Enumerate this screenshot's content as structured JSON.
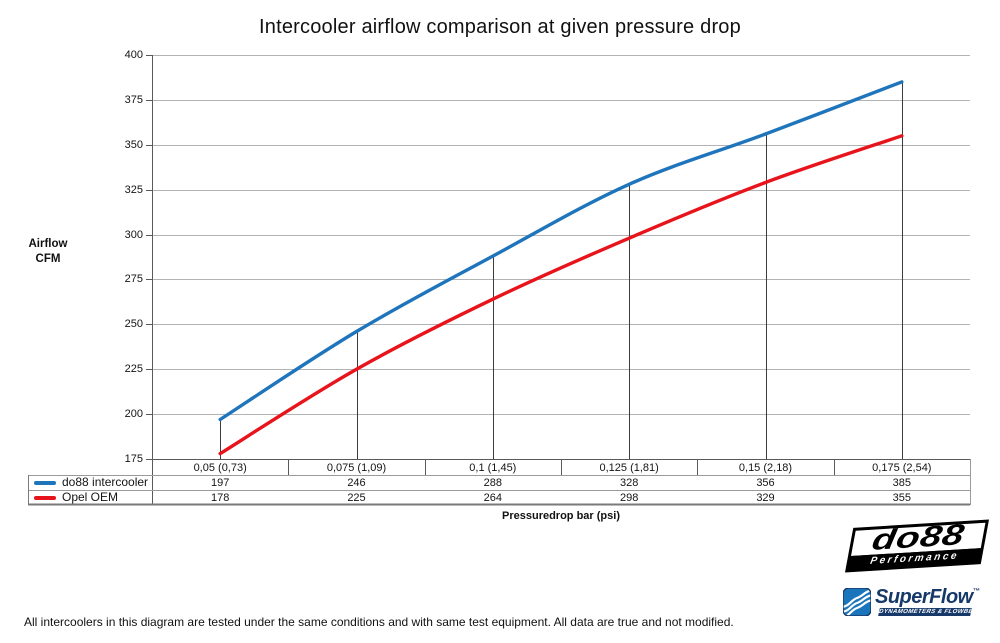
{
  "title": "Intercooler airflow comparison at given pressure drop",
  "chart_data": {
    "type": "line",
    "title": "Intercooler airflow comparison at given pressure drop",
    "categories": [
      "0,05 (0,73)",
      "0,075 (1,09)",
      "0,1 (1,45)",
      "0,125 (1,81)",
      "0,15 (2,18)",
      "0,175 (2,54)"
    ],
    "series": [
      {
        "name": "do88 intercooler",
        "color": "#1f75bc",
        "values": [
          197,
          246,
          288,
          328,
          356,
          385
        ]
      },
      {
        "name": "Opel OEM",
        "color": "#e8141c",
        "values": [
          178,
          225,
          264,
          298,
          329,
          355
        ]
      }
    ],
    "xlabel": "Pressuredrop bar (psi)",
    "ylabel": "Airflow CFM",
    "ylim": [
      175,
      400
    ],
    "ytick_step": 25,
    "grid": true,
    "legend_position": "table-left",
    "smooth_lines": true,
    "drop_lines": true
  },
  "y_axis_label": {
    "line1": "Airflow",
    "line2": "CFM"
  },
  "footer": {
    "note": "All intercoolers in this diagram are tested under the same conditions and with same test equipment. All data are true and not modified."
  },
  "logos": {
    "do88": {
      "wordmark": "do88",
      "tagline": "Performance"
    },
    "superflow": {
      "wordmark": "SuperFlow",
      "trademark": "™",
      "tagline": "DYNAMOMETERS & FLOWBENCHES"
    }
  }
}
